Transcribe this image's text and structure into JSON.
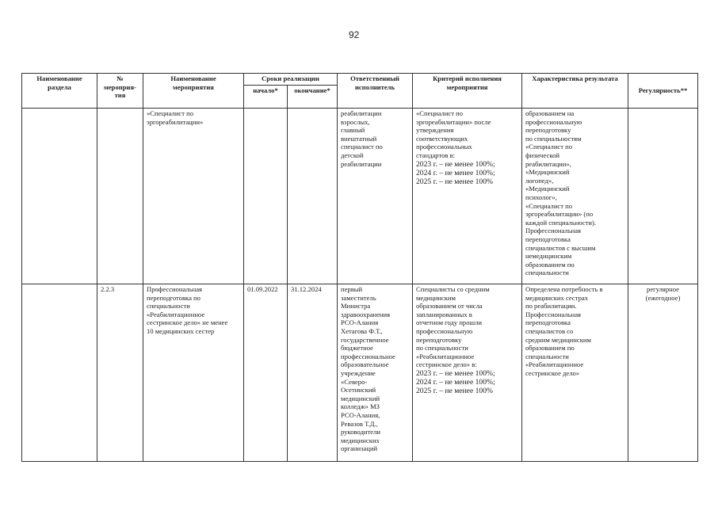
{
  "page_number": "92",
  "header": {
    "section_name": "Наименование\nраздела",
    "number": "№\nмероприя-\nтия",
    "event_name": "Наименование\nмероприятия",
    "terms": "Сроки реализации",
    "start": "начало*",
    "end": "окончание*",
    "responsible": "Ответственный\nисполнитель",
    "criterion": "Критерий исполнения\nмероприятия",
    "result": "Характеристика результата",
    "regularity": "Регулярность**"
  },
  "rows": [
    {
      "section": "",
      "number": "",
      "event": "«Специалист по\nэргореабилитации»",
      "start": "",
      "end": "",
      "responsible": "реабилитации\nвзрослых,\nглавный\nвнештатный\nспециалист по\nдетской\nреабилитации",
      "criterion": "«Специалист по\nэргореабилитации» после\nутверждения\nсоответствующих\nпрофессиональных\nстандартов в:",
      "criterion_years": "2023 г. – не менее 100%;\n2024 г. – не менее  100%;\n2025 г. – не менее 100%",
      "result": "образованием на\nпрофессиональную\nпереподготовку\nпо специальностям\n«Специалист по\nфизической\nреабилитации»,\n«Медицинский\nлогопед»,\n«Медицинский\nпсихолог»,\n«Специалист по\nэргореабилитации» (по\nкаждой специальности).\nПрофессиональная\nпереподготовка\nспециалистов с высшим\nнемедицинским\nобразованием по\nспециальности",
      "regularity": ""
    },
    {
      "section": "",
      "number": "2.2.3",
      "event": "Профессиональная\nпереподготовка по\nспециальности\n«Реабилитационное\nсестринское дело» не менее\n10 медицинских сестер",
      "start": "01.09.2022",
      "end": "31.12.2024",
      "responsible": "первый\nзаместитель\nМинистра\nздравоохранения\nРСО-Алания\nХетагова Ф.Т.,\nгосударственное\nбюджетное\nпрофессиональное\nобразовательное\nучреждение\n«Северо-\nОсетинский\nмедицинский\nколледж» МЗ\nРСО-Алания,\nРевазов Т.Д.,\nруководители\nмедицинских\nорганизаций",
      "criterion": "Специалисты со средним\nмедицинским\nобразованием от числа\nзапланированных в\nотчетном году прошли\nпрофессиональную\nпереподготовку\nпо специальности\n«Реабилитационное\nсестринское дело» в:",
      "criterion_years": "2023 г. – не менее 100%;\n2024 г. – не менее 100%;\n2025 г. – не менее 100%",
      "result": "Определена потребность в\nмедицинских сестрах\nпо реабилитации.\nПрофессиональная\nпереподготовка\nспециалистов со\nсредним медицинским\nобразованием по\nспециальности\n«Реабилитационное\nсестринское дело»",
      "regularity": "регулярное\n(ежегодное)"
    }
  ]
}
